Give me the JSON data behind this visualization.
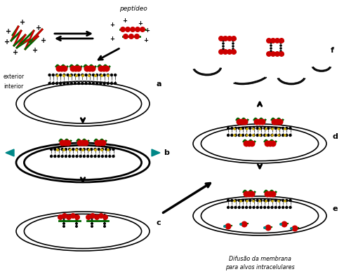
{
  "background_color": "#ffffff",
  "label_a": "a",
  "label_b": "b",
  "label_c": "c",
  "label_d": "d",
  "label_e": "e",
  "label_f": "f",
  "text_peptideo": "peptídeo",
  "text_exterior": "exterior",
  "text_interior": "interior",
  "text_difusao": "Difusão da membrana\npara alvos intracelulares",
  "red": "#cc0000",
  "green": "#006600",
  "black": "#000000",
  "yellow": "#ccaa00",
  "teal": "#008888",
  "gray": "#666666"
}
